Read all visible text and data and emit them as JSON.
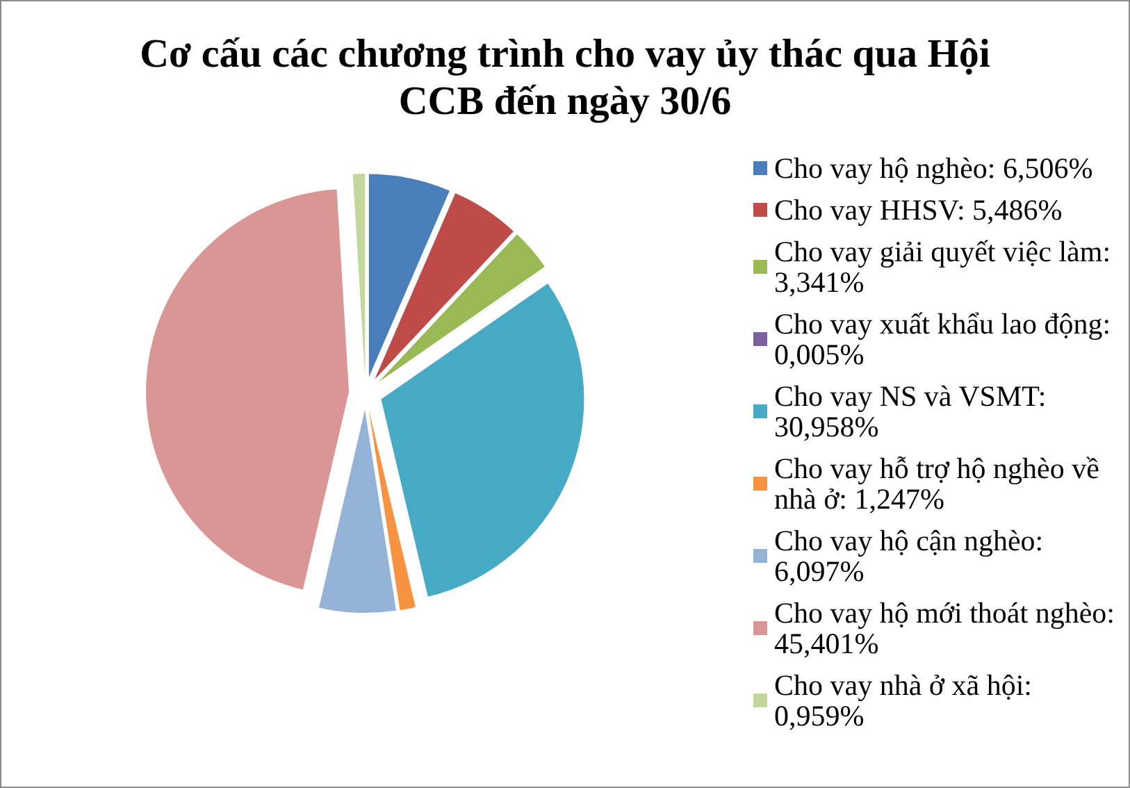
{
  "chart_data": {
    "type": "pie",
    "title": "Cơ cấu các chương trình cho vay ủy thác qua Hội CCB đến ngày 30/6",
    "categories": [
      "Cho vay hộ nghèo: 6,506%",
      "Cho vay HHSV: 5,486%",
      "Cho vay giải quyết việc làm: 3,341%",
      "Cho vay xuất khẩu lao động: 0,005%",
      "Cho vay NS và VSMT: 30,958%",
      "Cho vay hỗ trợ hộ nghèo về nhà ở: 1,247%",
      "Cho vay hộ cận nghèo: 6,097%",
      "Cho vay hộ mới thoát nghèo: 45,401%",
      "Cho vay nhà ở xã hội: 0,959%"
    ],
    "values": [
      6.506,
      5.486,
      3.341,
      0.005,
      30.958,
      1.247,
      6.097,
      45.401,
      0.959
    ],
    "colors": [
      "#4a7ebb",
      "#be4b48",
      "#98b954",
      "#7d60a0",
      "#46aac5",
      "#f69240",
      "#95b3d7",
      "#d99694",
      "#c3d69b"
    ],
    "legend": "right"
  }
}
